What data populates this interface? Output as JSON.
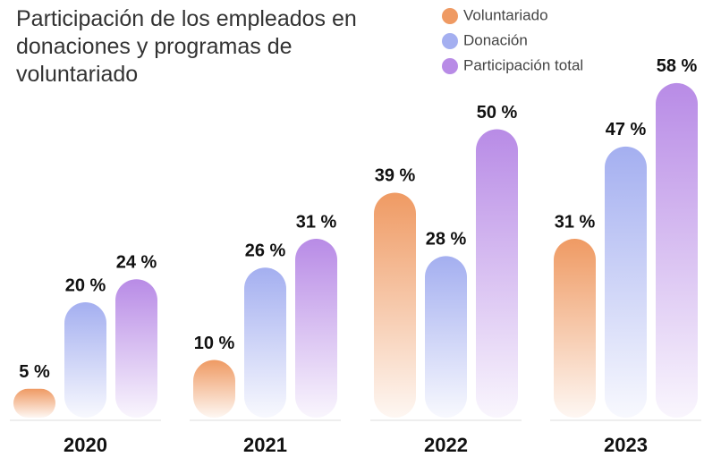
{
  "chart_data": {
    "type": "bar",
    "title": "Participación de los empleados en donaciones y programas de voluntariado",
    "categories": [
      "2020",
      "2021",
      "2022",
      "2023"
    ],
    "series": [
      {
        "name": "Voluntariado",
        "color": "#ef9a63",
        "values": [
          5,
          10,
          39,
          31
        ],
        "value_labels": [
          "5 %",
          "10 %",
          "39 %",
          "31 %"
        ]
      },
      {
        "name": "Donación",
        "color": "#a4aff0",
        "values": [
          20,
          26,
          28,
          47
        ],
        "value_labels": [
          "20 %",
          "26 %",
          "28 %",
          "47 %"
        ]
      },
      {
        "name": "Participación total",
        "color": "#b88be6",
        "values": [
          24,
          31,
          50,
          58
        ],
        "value_labels": [
          "24 %",
          "31 %",
          "50 %",
          "58 %"
        ]
      }
    ]
  }
}
